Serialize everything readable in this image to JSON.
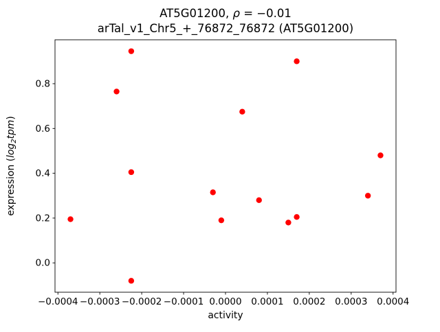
{
  "figure": {
    "title_line1": {
      "prefix": "AT5G01200, ",
      "rho": "ρ",
      "rest": " = −0.01"
    },
    "title_line2": "arTal_v1_Chr5_+_76872_76872 (AT5G01200)"
  },
  "chart_data": {
    "type": "scatter",
    "title": "AT5G01200, ρ = −0.01\narTal_v1_Chr5_+_76872_76872 (AT5G01200)",
    "xlabel": "activity",
    "ylabel": "expression (log₂tpm)",
    "ylabel_parts": {
      "prefix": "expression (",
      "log": "log",
      "sub": "2",
      "tpm": "tpm",
      "suffix": ")"
    },
    "marker": {
      "shape": "circle",
      "color": "#ff0000",
      "radius_px": 4.2
    },
    "grid": false,
    "legend": false,
    "xlim": [
      -0.000407,
      0.000407
    ],
    "ylim": [
      -0.131,
      0.996
    ],
    "xticks": {
      "values": [
        -0.0004,
        -0.0003,
        -0.0002,
        -0.0001,
        0.0,
        0.0001,
        0.0002,
        0.0003,
        0.0004
      ],
      "labels": [
        "−0.0004",
        "−0.0003",
        "−0.0002",
        "−0.0001",
        "0.0000",
        "0.0001",
        "0.0002",
        "0.0003",
        "0.0004"
      ]
    },
    "yticks": {
      "values": [
        0.0,
        0.2,
        0.4,
        0.6,
        0.8
      ],
      "labels": [
        "0.0",
        "0.2",
        "0.4",
        "0.6",
        "0.8"
      ]
    },
    "points": [
      [
        -0.00037,
        0.195
      ],
      [
        -0.00026,
        0.765
      ],
      [
        -0.000225,
        0.945
      ],
      [
        -0.000225,
        0.405
      ],
      [
        -0.000225,
        -0.08
      ],
      [
        -3e-05,
        0.315
      ],
      [
        -1e-05,
        0.19
      ],
      [
        4e-05,
        0.675
      ],
      [
        8e-05,
        0.28
      ],
      [
        0.00015,
        0.18
      ],
      [
        0.00017,
        0.205
      ],
      [
        0.00017,
        0.9
      ],
      [
        0.00034,
        0.3
      ],
      [
        0.00037,
        0.48
      ]
    ]
  }
}
